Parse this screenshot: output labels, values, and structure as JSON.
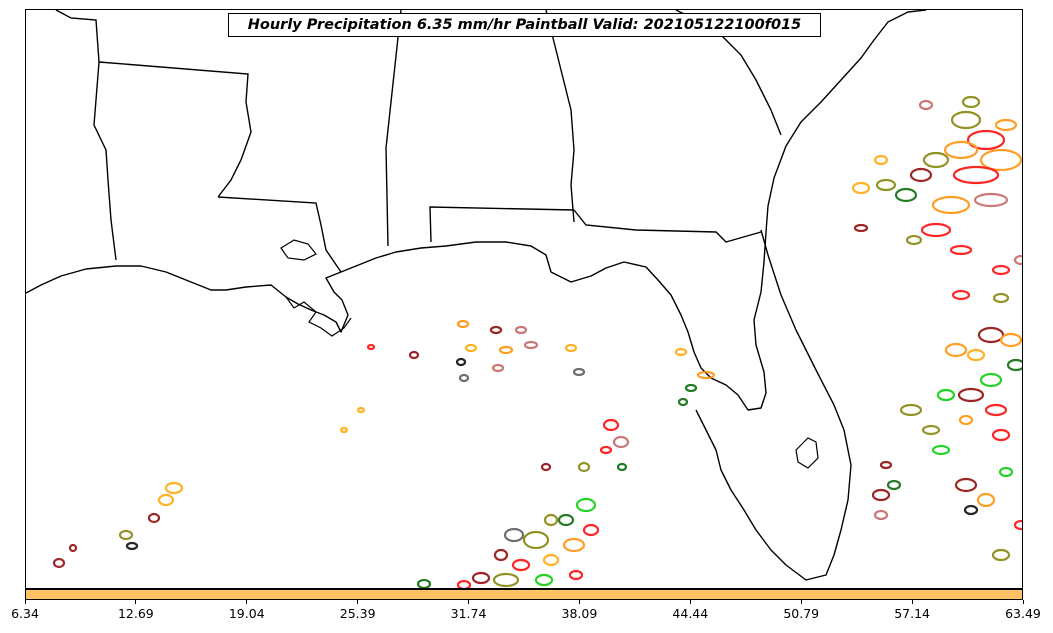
{
  "title": "Hourly Precipitation 6.35 mm/hr Paintball Valid: 202105122100f015",
  "colorbar": {
    "color": "#ffc266",
    "ticks": [
      "6.34",
      "12.69",
      "19.04",
      "25.39",
      "31.74",
      "38.09",
      "44.44",
      "50.79",
      "57.14",
      "63.49"
    ]
  },
  "map": {
    "region": "Gulf of Mexico / Southeastern United States",
    "paintball_colors": [
      "#ff0000",
      "#ff8c00",
      "#ffa500",
      "#8b0000",
      "#00cc00",
      "#006400",
      "#808000",
      "#000000",
      "#555555",
      "#c06060"
    ]
  }
}
